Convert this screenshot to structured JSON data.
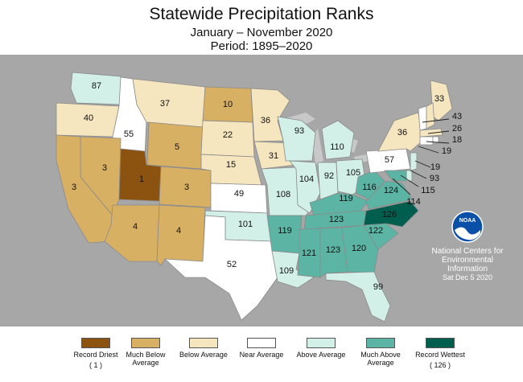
{
  "header": {
    "title": "Statewide Precipitation Ranks",
    "subtitle": "January – November 2020",
    "period": "Period: 1895–2020"
  },
  "colors": {
    "record_driest": "#8c5310",
    "much_below": "#d8b064",
    "below": "#f6e6bf",
    "near": "#ffffff",
    "above": "#d2efe8",
    "much_above": "#5cb5a4",
    "record_wettest": "#005e4e",
    "background": "#a7a7a7",
    "water": "#c8c8c8"
  },
  "states": {
    "WA": "87",
    "OR": "40",
    "ID": "55",
    "MT": "37",
    "WY": "5",
    "NV": "3",
    "UT": "1",
    "CO": "3",
    "CA": "3",
    "AZ": "4",
    "NM": "4",
    "ND": "10",
    "SD": "22",
    "NE": "15",
    "KS": "49",
    "OK": "101",
    "TX": "52",
    "MN": "36",
    "IA": "31",
    "MO": "108",
    "AR": "119",
    "LA": "109",
    "WI": "93",
    "IL": "104",
    "MI": "110",
    "IN": "92",
    "OH": "105",
    "KY": "119",
    "TN": "123",
    "MS": "121",
    "AL": "123",
    "GA": "120",
    "FL": "99",
    "SC": "122",
    "NC": "126",
    "VA": "124",
    "WV": "116",
    "PA": "57",
    "NY": "36",
    "ME": "33",
    "NH": "43",
    "VT": "",
    "MA": "26",
    "CT": "18",
    "RI": "",
    "NJ": "19",
    "NJ2": "19",
    "DE": "93",
    "MD": "115",
    "DC": "114"
  },
  "legend": [
    {
      "label": "Record Driest",
      "value": "( 1 )",
      "color": "#8c5310"
    },
    {
      "label": "Much Below Average",
      "color": "#d8b064"
    },
    {
      "label": "Below Average",
      "color": "#f6e6bf"
    },
    {
      "label": "Near Average",
      "color": "#ffffff"
    },
    {
      "label": "Above Average",
      "color": "#d2efe8"
    },
    {
      "label": "Much Above Average",
      "color": "#5cb5a4"
    },
    {
      "label": "Record Wettest",
      "value": "( 126 )",
      "color": "#005e4e"
    }
  ],
  "logo": {
    "text": "NOAA",
    "org_line1": "National Centers for",
    "org_line2": "Environmental",
    "org_line3": "Information",
    "date": "Sat Dec  5 2020"
  }
}
